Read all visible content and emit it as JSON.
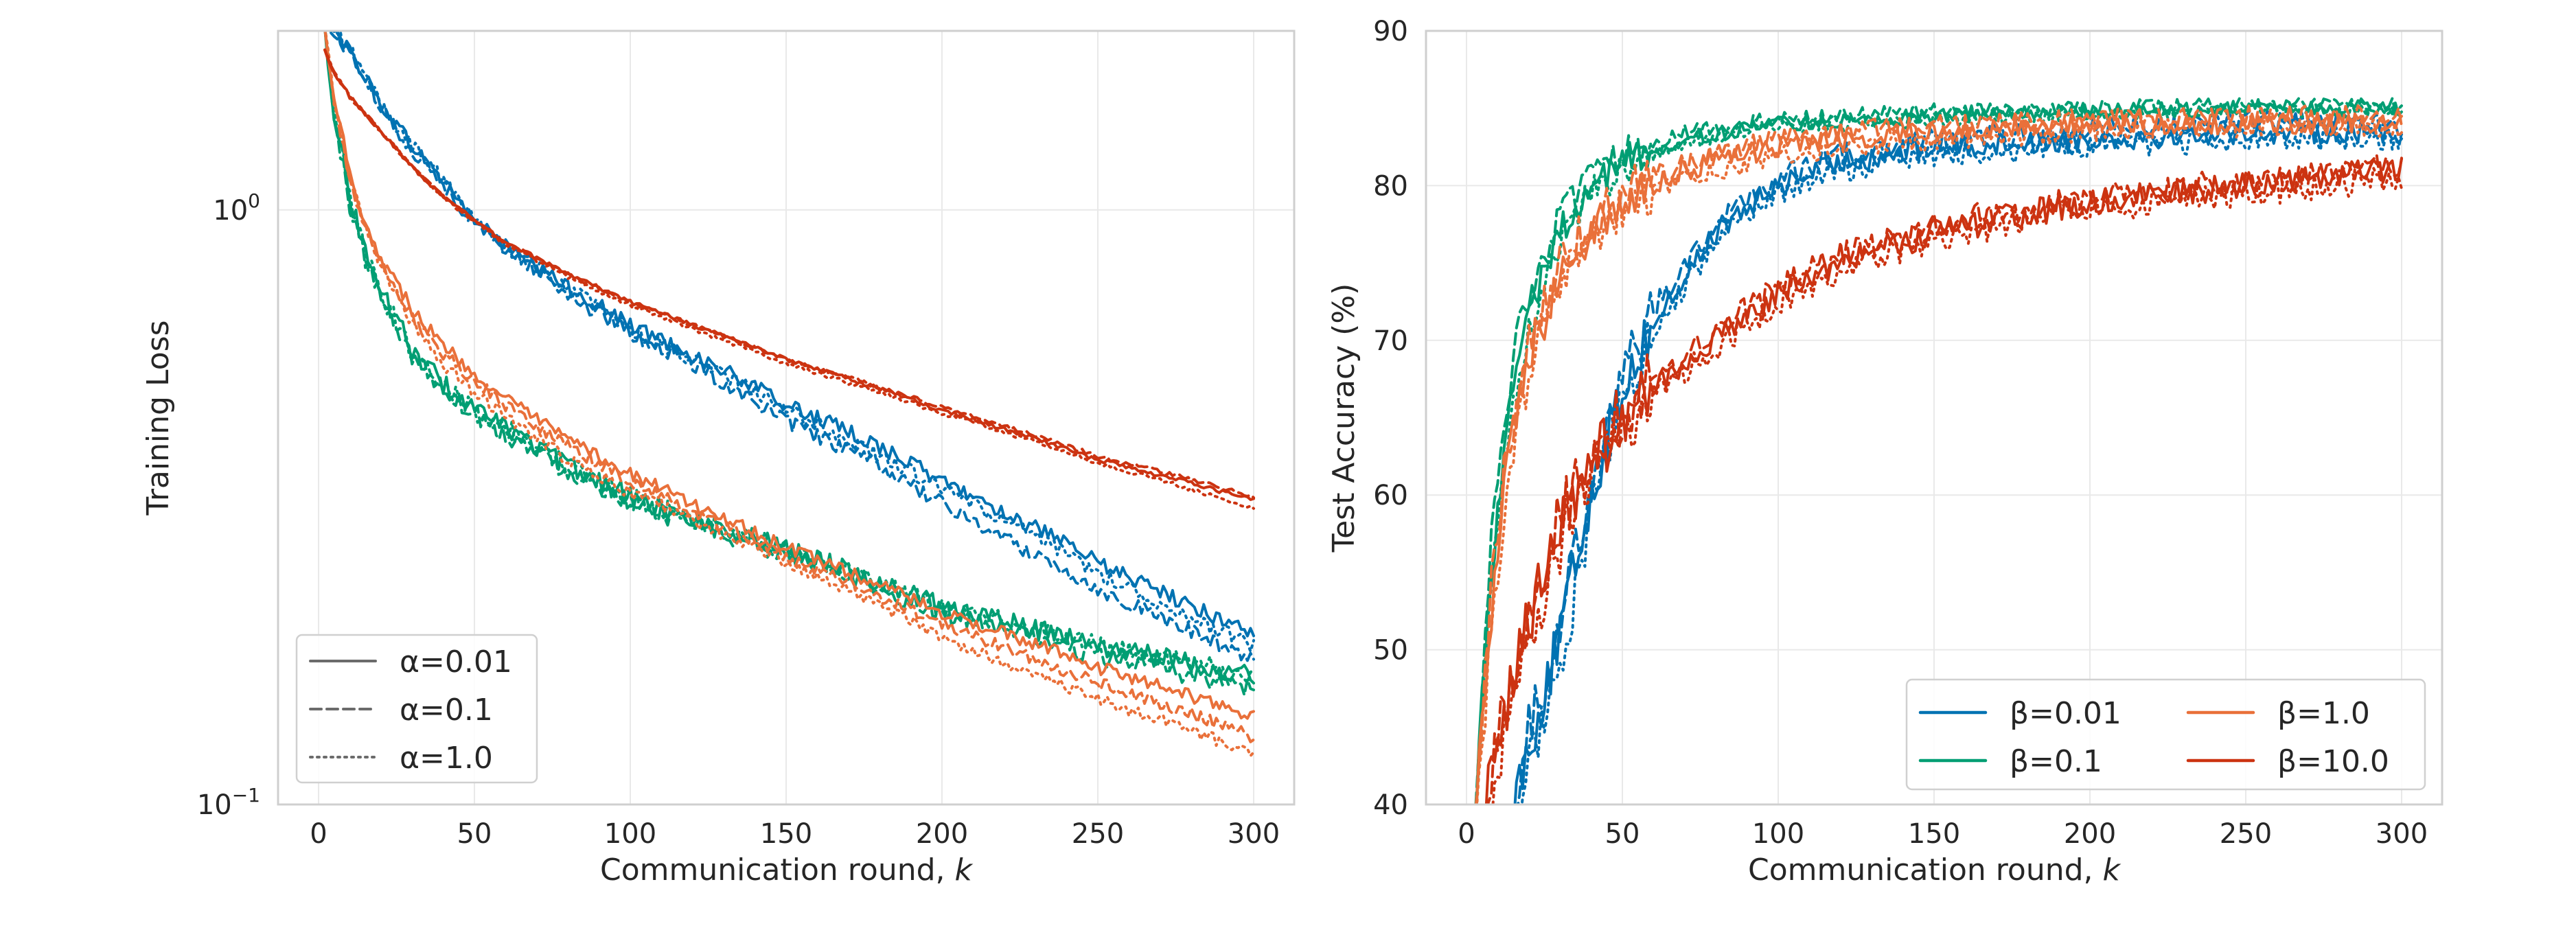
{
  "chart_data": [
    {
      "type": "line",
      "title": "",
      "xlabel": "Communication round, k",
      "xlabel_parts": [
        "Communication round, ",
        "k"
      ],
      "ylabel": "Training Loss",
      "yscale": "log",
      "xlim": [
        -13,
        313
      ],
      "ylim": [
        0.1,
        2.0
      ],
      "xticks": [
        0,
        50,
        100,
        150,
        200,
        250,
        300
      ],
      "xtick_labels": [
        "0",
        "50",
        "100",
        "150",
        "200",
        "250",
        "300"
      ],
      "yticks": [
        1.0,
        0.1
      ],
      "ytick_labels": [
        {
          "base": "10",
          "exp": "0"
        },
        {
          "base": "10",
          "exp": "−1"
        }
      ],
      "grid": true,
      "legend_position": "lower-left",
      "legend": [
        {
          "label": "α=0.01",
          "dash": "solid",
          "color": "#6b6b6b"
        },
        {
          "label": "α=0.1",
          "dash": "dashed",
          "color": "#6b6b6b"
        },
        {
          "label": "α=1.0",
          "dash": "dotted",
          "color": "#6b6b6b"
        }
      ],
      "series": [
        {
          "color": "#0072b2",
          "dash": "solid",
          "x": [
            2,
            10,
            20,
            30,
            40,
            50,
            60,
            70,
            80,
            100,
            120,
            150,
            180,
            200,
            220,
            250,
            280,
            300
          ],
          "y": [
            2.1,
            1.85,
            1.5,
            1.28,
            1.12,
            0.96,
            0.87,
            0.8,
            0.74,
            0.64,
            0.57,
            0.47,
            0.4,
            0.35,
            0.31,
            0.255,
            0.215,
            0.195
          ],
          "noise": 0.03
        },
        {
          "color": "#0072b2",
          "dash": "dashed",
          "x": [
            2,
            10,
            20,
            30,
            40,
            50,
            60,
            70,
            80,
            100,
            120,
            150,
            180,
            200,
            220,
            250,
            280,
            300
          ],
          "y": [
            2.1,
            1.83,
            1.48,
            1.26,
            1.1,
            0.95,
            0.86,
            0.79,
            0.72,
            0.62,
            0.55,
            0.44,
            0.37,
            0.32,
            0.28,
            0.23,
            0.195,
            0.175
          ],
          "noise": 0.03
        },
        {
          "color": "#0072b2",
          "dash": "dotted",
          "x": [
            2,
            10,
            20,
            30,
            40,
            50,
            60,
            70,
            80,
            100,
            120,
            150,
            180,
            200,
            220,
            250,
            280,
            300
          ],
          "y": [
            2.1,
            1.86,
            1.5,
            1.28,
            1.12,
            0.96,
            0.87,
            0.8,
            0.74,
            0.63,
            0.56,
            0.46,
            0.385,
            0.34,
            0.3,
            0.245,
            0.205,
            0.185
          ],
          "noise": 0.03
        },
        {
          "color": "#009e73",
          "dash": "solid",
          "x": [
            2,
            5,
            10,
            15,
            20,
            30,
            40,
            50,
            60,
            80,
            100,
            120,
            150,
            200,
            250,
            300
          ],
          "y": [
            2.0,
            1.45,
            1.05,
            0.85,
            0.73,
            0.58,
            0.51,
            0.46,
            0.43,
            0.37,
            0.33,
            0.3,
            0.27,
            0.215,
            0.185,
            0.165
          ],
          "noise": 0.04
        },
        {
          "color": "#009e73",
          "dash": "dashed",
          "x": [
            2,
            5,
            10,
            15,
            20,
            30,
            40,
            50,
            60,
            80,
            100,
            120,
            150,
            200,
            250,
            300
          ],
          "y": [
            2.0,
            1.4,
            1.02,
            0.83,
            0.71,
            0.57,
            0.5,
            0.455,
            0.42,
            0.365,
            0.325,
            0.295,
            0.265,
            0.21,
            0.178,
            0.157
          ],
          "noise": 0.04
        },
        {
          "color": "#009e73",
          "dash": "dotted",
          "x": [
            2,
            5,
            10,
            15,
            20,
            30,
            40,
            50,
            60,
            80,
            100,
            120,
            150,
            200,
            250,
            300
          ],
          "y": [
            2.0,
            1.44,
            1.04,
            0.84,
            0.72,
            0.58,
            0.51,
            0.46,
            0.43,
            0.37,
            0.33,
            0.3,
            0.27,
            0.215,
            0.185,
            0.165
          ],
          "noise": 0.04
        },
        {
          "color": "#e9703a",
          "dash": "solid",
          "x": [
            2,
            5,
            10,
            15,
            20,
            30,
            40,
            50,
            60,
            80,
            100,
            120,
            150,
            200,
            250,
            300
          ],
          "y": [
            2.0,
            1.55,
            1.15,
            0.95,
            0.83,
            0.68,
            0.59,
            0.53,
            0.48,
            0.41,
            0.36,
            0.32,
            0.27,
            0.21,
            0.17,
            0.14
          ],
          "noise": 0.025
        },
        {
          "color": "#e9703a",
          "dash": "dashed",
          "x": [
            2,
            5,
            10,
            15,
            20,
            30,
            40,
            50,
            60,
            80,
            100,
            120,
            150,
            200,
            250,
            300
          ],
          "y": [
            2.0,
            1.5,
            1.12,
            0.93,
            0.81,
            0.66,
            0.575,
            0.515,
            0.47,
            0.4,
            0.35,
            0.31,
            0.26,
            0.2,
            0.16,
            0.13
          ],
          "noise": 0.025
        },
        {
          "color": "#e9703a",
          "dash": "dotted",
          "x": [
            2,
            5,
            10,
            15,
            20,
            30,
            40,
            50,
            60,
            80,
            100,
            120,
            150,
            200,
            250,
            300
          ],
          "y": [
            2.0,
            1.53,
            1.13,
            0.93,
            0.8,
            0.64,
            0.55,
            0.49,
            0.45,
            0.38,
            0.335,
            0.3,
            0.255,
            0.19,
            0.15,
            0.122
          ],
          "noise": 0.025
        },
        {
          "color": "#cc3311",
          "dash": "solid",
          "x": [
            2,
            5,
            10,
            20,
            30,
            40,
            50,
            60,
            80,
            100,
            120,
            150,
            200,
            250,
            300
          ],
          "y": [
            1.85,
            1.7,
            1.55,
            1.35,
            1.18,
            1.05,
            0.96,
            0.88,
            0.78,
            0.7,
            0.64,
            0.56,
            0.46,
            0.38,
            0.325
          ],
          "noise": 0.008
        },
        {
          "color": "#cc3311",
          "dash": "dashed",
          "x": [
            2,
            5,
            10,
            20,
            30,
            40,
            50,
            60,
            80,
            100,
            120,
            150,
            200,
            250,
            300
          ],
          "y": [
            1.85,
            1.7,
            1.55,
            1.35,
            1.18,
            1.05,
            0.96,
            0.88,
            0.78,
            0.7,
            0.64,
            0.56,
            0.465,
            0.385,
            0.33
          ],
          "noise": 0.008
        },
        {
          "color": "#cc3311",
          "dash": "dotted",
          "x": [
            2,
            5,
            10,
            20,
            30,
            40,
            50,
            60,
            80,
            100,
            120,
            150,
            200,
            250,
            300
          ],
          "y": [
            1.85,
            1.7,
            1.55,
            1.35,
            1.18,
            1.05,
            0.955,
            0.875,
            0.77,
            0.69,
            0.63,
            0.55,
            0.455,
            0.375,
            0.315
          ],
          "noise": 0.008
        }
      ]
    },
    {
      "type": "line",
      "title": "",
      "xlabel": "Communication round, k",
      "xlabel_parts": [
        "Communication round, ",
        "k"
      ],
      "ylabel": "Test Accuracy (%)",
      "yscale": "linear",
      "xlim": [
        -13,
        313
      ],
      "ylim": [
        40,
        90
      ],
      "xticks": [
        0,
        50,
        100,
        150,
        200,
        250,
        300
      ],
      "xtick_labels": [
        "0",
        "50",
        "100",
        "150",
        "200",
        "250",
        "300"
      ],
      "yticks": [
        40,
        50,
        60,
        70,
        80,
        90
      ],
      "ytick_labels": [
        "40",
        "50",
        "60",
        "70",
        "80",
        "90"
      ],
      "grid": true,
      "legend_position": "lower-right",
      "legend_columns": 2,
      "legend": [
        {
          "label": "β=0.01",
          "color": "#0072b2"
        },
        {
          "label": "β=0.1",
          "color": "#009e73"
        },
        {
          "label": "β=1.0",
          "color": "#e9703a"
        },
        {
          "label": "β=10.0",
          "color": "#cc3311"
        }
      ],
      "series": [
        {
          "color": "#0072b2",
          "dash": "solid",
          "x": [
            15,
            20,
            25,
            30,
            40,
            50,
            60,
            70,
            80,
            100,
            120,
            150,
            200,
            250,
            300
          ],
          "y": [
            40,
            44,
            47,
            51,
            60,
            67,
            71,
            74,
            77,
            80,
            81.5,
            82.5,
            83,
            83.5,
            83.5
          ],
          "noise": 0.8
        },
        {
          "color": "#0072b2",
          "dash": "dashed",
          "x": [
            15,
            20,
            25,
            30,
            40,
            50,
            60,
            70,
            80,
            100,
            120,
            150,
            200,
            250,
            300
          ],
          "y": [
            40,
            45,
            48,
            52,
            61,
            67.5,
            72,
            75,
            77.5,
            80.5,
            82,
            83,
            83.5,
            84,
            84
          ],
          "noise": 0.8
        },
        {
          "color": "#0072b2",
          "dash": "dotted",
          "x": [
            17,
            22,
            27,
            32,
            40,
            50,
            60,
            70,
            80,
            100,
            120,
            150,
            200,
            250,
            300
          ],
          "y": [
            40,
            44,
            47,
            51,
            59,
            66,
            70.5,
            73.5,
            76.5,
            79.5,
            81,
            82,
            82.5,
            83,
            83
          ],
          "noise": 0.8
        },
        {
          "color": "#009e73",
          "dash": "solid",
          "x": [
            3,
            5,
            8,
            12,
            16,
            20,
            30,
            40,
            50,
            70,
            100,
            150,
            200,
            250,
            300
          ],
          "y": [
            40,
            47,
            55,
            63,
            68,
            72,
            77,
            80,
            81.5,
            83,
            84,
            84.5,
            84.8,
            85,
            85
          ],
          "noise": 0.5
        },
        {
          "color": "#009e73",
          "dash": "dashed",
          "x": [
            3,
            5,
            8,
            12,
            16,
            20,
            30,
            40,
            50,
            70,
            100,
            150,
            200,
            250,
            300
          ],
          "y": [
            41,
            48,
            57,
            64,
            70,
            73,
            78,
            80.5,
            82,
            83.5,
            84.3,
            84.8,
            85,
            85.2,
            85.2
          ],
          "noise": 0.5
        },
        {
          "color": "#009e73",
          "dash": "dotted",
          "x": [
            3,
            5,
            8,
            12,
            16,
            20,
            30,
            40,
            50,
            70,
            100,
            150,
            200,
            250,
            300
          ],
          "y": [
            40,
            46,
            54,
            62,
            67,
            71,
            76.5,
            79.5,
            81,
            82.8,
            83.8,
            84.3,
            84.6,
            84.8,
            84.8
          ],
          "noise": 0.5
        },
        {
          "color": "#e9703a",
          "dash": "solid",
          "x": [
            3,
            5,
            8,
            12,
            16,
            20,
            30,
            40,
            50,
            70,
            100,
            150,
            200,
            250,
            300
          ],
          "y": [
            40,
            45,
            52,
            60,
            65,
            69,
            74,
            77,
            79,
            81,
            82.5,
            83.5,
            84,
            84,
            84
          ],
          "noise": 0.7
        },
        {
          "color": "#e9703a",
          "dash": "dashed",
          "x": [
            3,
            5,
            8,
            12,
            16,
            20,
            30,
            40,
            50,
            70,
            100,
            150,
            200,
            250,
            300
          ],
          "y": [
            41,
            46,
            54,
            61,
            66,
            70,
            75,
            78,
            79.5,
            81.5,
            83,
            84,
            84.3,
            84.5,
            84.5
          ],
          "noise": 0.7
        },
        {
          "color": "#e9703a",
          "dash": "dotted",
          "x": [
            3,
            5,
            8,
            12,
            16,
            20,
            30,
            40,
            50,
            70,
            100,
            150,
            200,
            250,
            300
          ],
          "y": [
            40,
            44,
            51,
            59,
            64,
            68,
            73.5,
            76.5,
            78.5,
            80.5,
            82,
            83,
            83.5,
            83.8,
            83.8
          ],
          "noise": 0.7
        },
        {
          "color": "#cc3311",
          "dash": "solid",
          "x": [
            6,
            10,
            15,
            20,
            25,
            30,
            40,
            50,
            60,
            80,
            100,
            120,
            150,
            200,
            250,
            300
          ],
          "y": [
            40,
            44,
            48,
            52,
            55,
            58,
            62,
            65,
            67,
            70,
            73,
            75,
            77,
            79,
            80,
            81
          ],
          "noise": 0.9
        },
        {
          "color": "#cc3311",
          "dash": "dashed",
          "x": [
            6,
            10,
            15,
            20,
            25,
            30,
            40,
            50,
            60,
            80,
            100,
            120,
            150,
            200,
            250,
            300
          ],
          "y": [
            40,
            44.5,
            48.5,
            52.5,
            55.5,
            58.5,
            62.5,
            65.5,
            67.5,
            70.5,
            73.5,
            75.5,
            77.5,
            79.3,
            80.3,
            81.3
          ],
          "noise": 0.9
        },
        {
          "color": "#cc3311",
          "dash": "dotted",
          "x": [
            8,
            12,
            17,
            22,
            27,
            32,
            40,
            50,
            60,
            80,
            100,
            120,
            150,
            200,
            250,
            300
          ],
          "y": [
            40,
            44,
            48,
            52,
            55,
            58,
            61.5,
            64.5,
            66.5,
            69.5,
            72.5,
            74.5,
            76.5,
            78.5,
            79.5,
            80.5
          ],
          "noise": 0.9
        }
      ]
    }
  ]
}
